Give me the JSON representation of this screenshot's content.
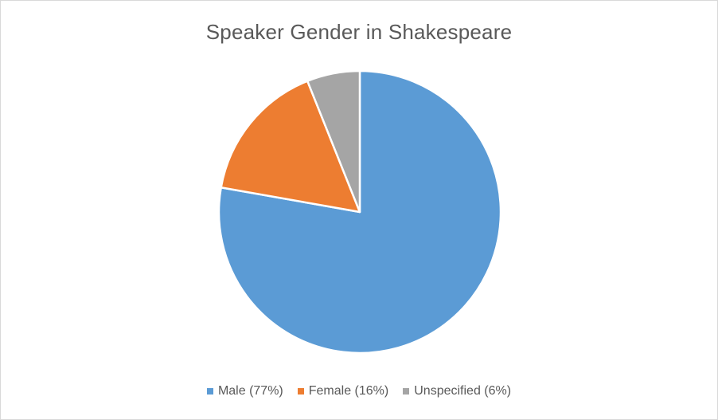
{
  "chart_data": {
    "type": "pie",
    "title": "Speaker Gender in Shakespeare",
    "legend_position": "bottom",
    "slices": [
      {
        "label": "Male (77%)",
        "value": 77,
        "color": "#5b9bd5"
      },
      {
        "label": "Female (16%)",
        "value": 16,
        "color": "#ed7d31"
      },
      {
        "label": "Unspecified (6%)",
        "value": 6,
        "color": "#a5a5a5"
      }
    ]
  }
}
